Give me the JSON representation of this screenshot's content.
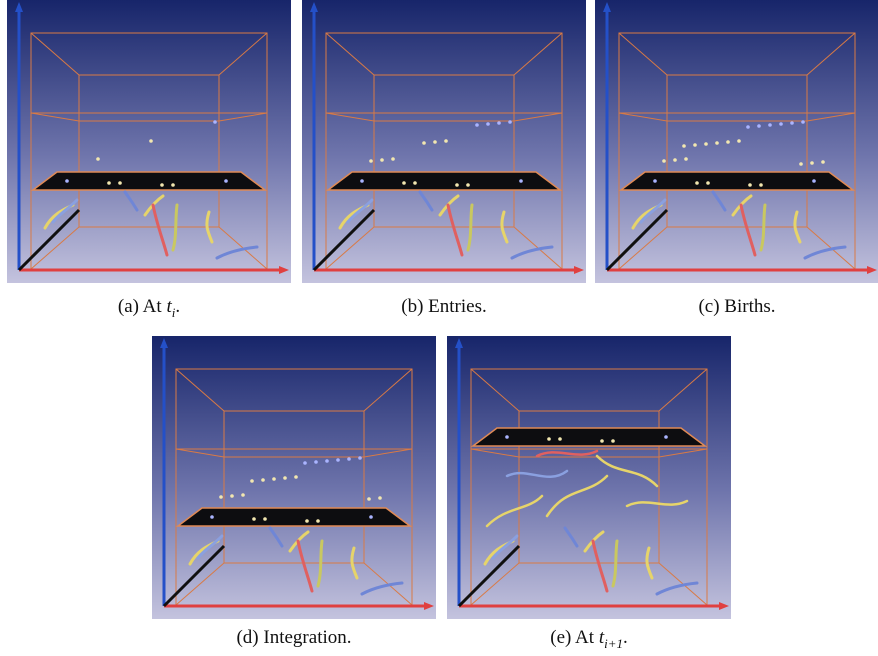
{
  "captions": [
    {
      "prefix": "(a) At ",
      "var": "t",
      "sub": "i",
      "suffix": "."
    },
    {
      "text": "(b) Entries."
    },
    {
      "text": "(c) Births."
    },
    {
      "text": "(d) Integration."
    },
    {
      "prefix": "(e) At ",
      "var": "t",
      "sub": "i+1",
      "suffix": "."
    }
  ]
}
